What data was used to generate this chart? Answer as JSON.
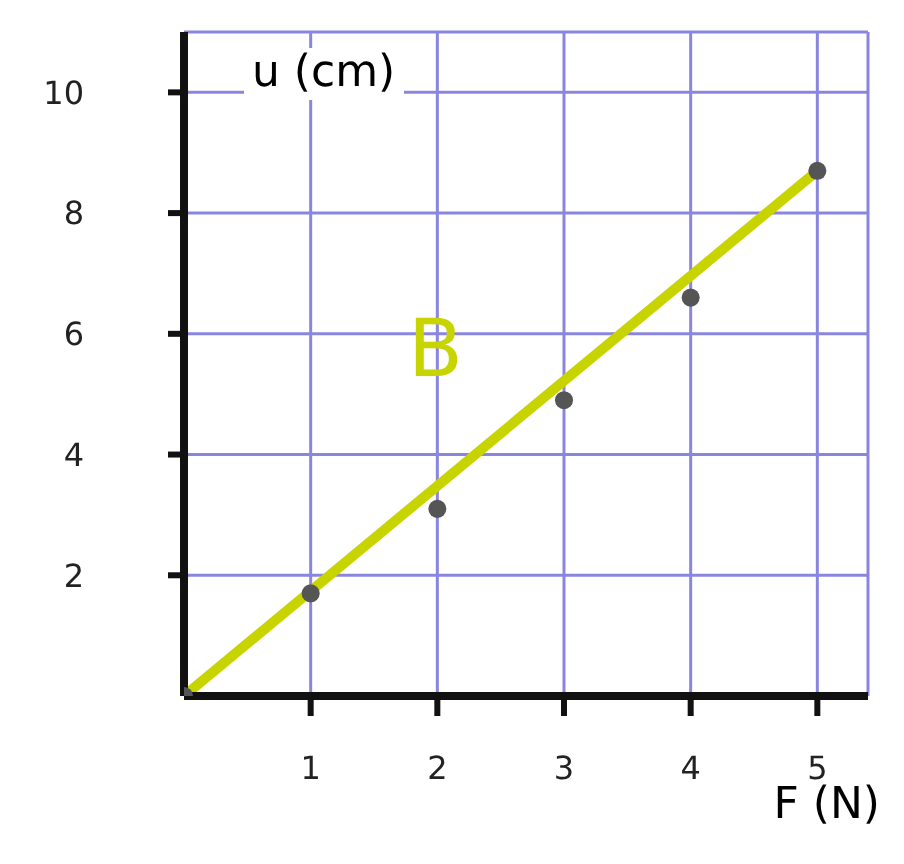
{
  "chart_data": {
    "type": "scatter",
    "xlabel": "F (N)",
    "ylabel": "u (cm)",
    "xlim": [
      0,
      5.4
    ],
    "ylim": [
      0,
      11
    ],
    "xticks": [
      1,
      2,
      3,
      4,
      5
    ],
    "yticks": [
      2,
      4,
      6,
      8,
      10
    ],
    "grid": true,
    "marker": "circle",
    "series": [
      {
        "color": "#555555",
        "x": [
          0,
          1,
          2,
          3,
          4,
          5
        ],
        "values": [
          0,
          1.7,
          3.1,
          4.9,
          6.6,
          8.7
        ]
      },
      {
        "type": "line",
        "color": "#c8d400",
        "x": [
          0,
          5
        ],
        "values": [
          0,
          8.7
        ],
        "marker": "none"
      }
    ],
    "annotations": [
      "B"
    ]
  }
}
